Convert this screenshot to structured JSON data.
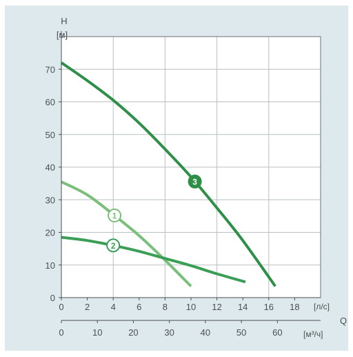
{
  "chart_data": {
    "type": "line",
    "y_axis": {
      "name": "H",
      "unit": "[м]",
      "range": [
        0,
        80
      ],
      "ticks": [
        0,
        10,
        20,
        30,
        40,
        50,
        60,
        70
      ]
    },
    "x_axis_primary": {
      "unit": "[л/с]",
      "range": [
        0,
        20
      ],
      "ticks": [
        0,
        2,
        4,
        6,
        8,
        10,
        12,
        14,
        16,
        18
      ]
    },
    "x_axis_secondary": {
      "name": "Q",
      "unit": "[м³/ч]",
      "range": [
        0,
        72
      ],
      "ticks": [
        0,
        10,
        20,
        30,
        40,
        50,
        60
      ]
    },
    "grid": true,
    "series": [
      {
        "label": "1",
        "color": "#7cbf7c",
        "x": [
          0,
          2,
          4,
          6,
          8,
          10
        ],
        "y": [
          35.5,
          31.5,
          25.5,
          19,
          11.5,
          3.5
        ]
      },
      {
        "label": "2",
        "color": "#3a9e57",
        "x": [
          0,
          2,
          4,
          6,
          8,
          10,
          12,
          14.2
        ],
        "y": [
          18.5,
          17.5,
          16,
          14.2,
          12,
          9.8,
          7.3,
          4.8
        ]
      },
      {
        "label": "3",
        "color": "#2e8f48",
        "x": [
          0,
          2,
          4,
          6,
          8,
          10,
          12,
          14,
          16.5
        ],
        "y": [
          72,
          66.5,
          60.5,
          53.5,
          45.5,
          37,
          27.5,
          17.5,
          3.5
        ]
      }
    ],
    "label_positions": [
      {
        "series": "1",
        "x": 4.1
      },
      {
        "series": "2",
        "x": 4.0
      },
      {
        "series": "3",
        "x": 10.3
      }
    ]
  }
}
